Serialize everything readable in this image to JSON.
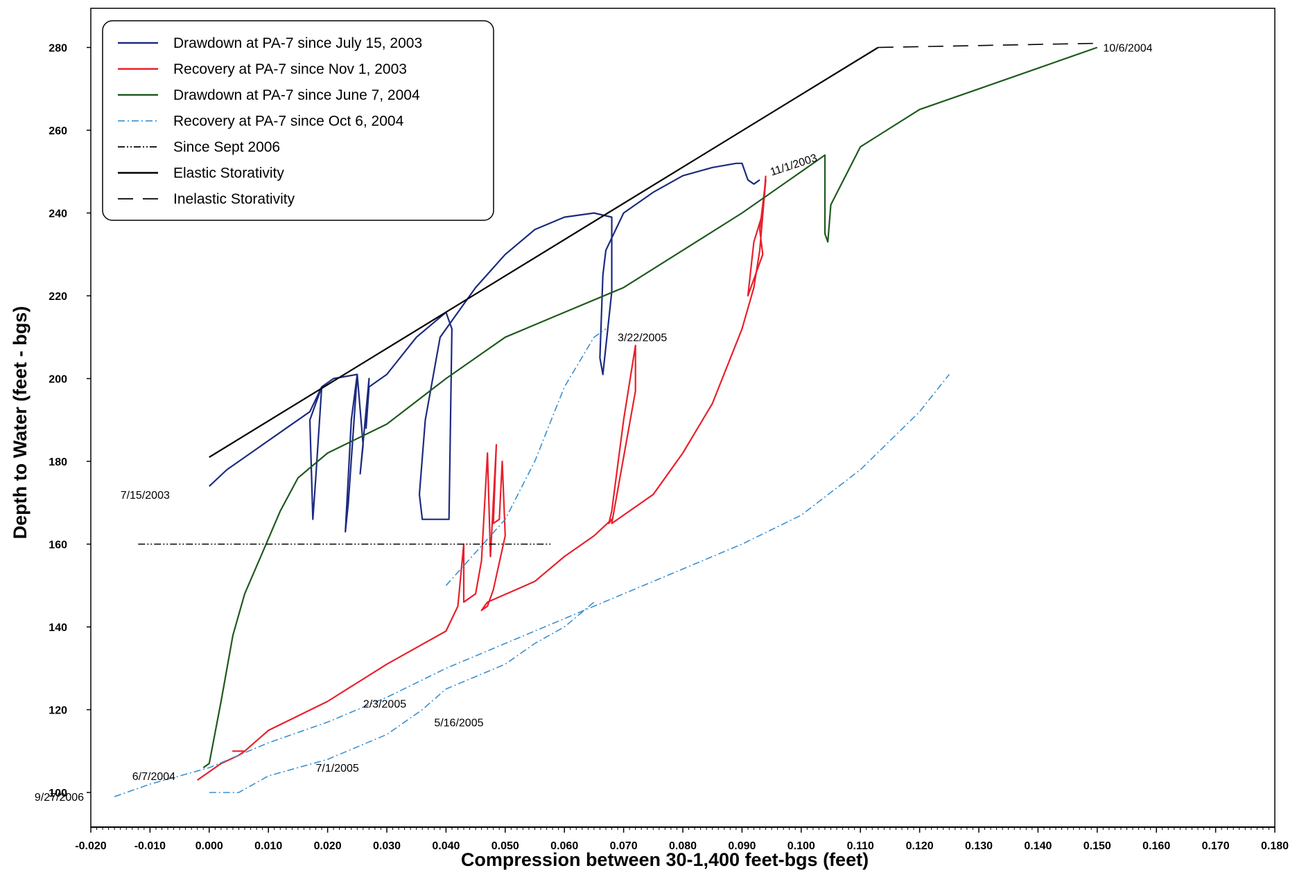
{
  "chart_data": {
    "type": "line",
    "xlabel": "Compression between 30-1,400 feet-bgs (feet)",
    "ylabel": "Depth to Water (feet - bgs)",
    "xlim": [
      -0.02,
      0.18
    ],
    "ylim": [
      99,
      290
    ],
    "x_ticks": [
      -0.02,
      -0.01,
      0.0,
      0.01,
      0.02,
      0.03,
      0.04,
      0.05,
      0.06,
      0.07,
      0.08,
      0.09,
      0.1,
      0.11,
      0.12,
      0.13,
      0.14,
      0.15,
      0.16,
      0.17,
      0.18
    ],
    "x_tick_labels": [
      "-0.020",
      "-0.010",
      "0.000",
      "0.010",
      "0.020",
      "0.030",
      "0.040",
      "0.050",
      "0.060",
      "0.070",
      "0.080",
      "0.090",
      "0.100",
      "0.110",
      "0.120",
      "0.130",
      "0.140",
      "0.150",
      "0.160",
      "0.170",
      "0.180"
    ],
    "y_ticks": [
      100,
      120,
      140,
      160,
      180,
      200,
      220,
      240,
      260,
      280
    ],
    "y_tick_labels": [
      "100",
      "120",
      "140",
      "160",
      "180",
      "200",
      "220",
      "240",
      "260",
      "280"
    ],
    "grid": false,
    "legend_position": "top-left",
    "series": [
      {
        "name": "Drawdown at PA-7 since July 15, 2003",
        "color": "#1c2a80",
        "dash": "solid",
        "x": [
          0.0,
          0.003,
          0.008,
          0.013,
          0.017,
          0.019,
          0.017,
          0.0175,
          0.018,
          0.019,
          0.021,
          0.025,
          0.024,
          0.023,
          0.0235,
          0.025,
          0.026,
          0.0255,
          0.027,
          0.0265,
          0.027,
          0.03,
          0.035,
          0.04,
          0.041,
          0.0405,
          0.036,
          0.0355,
          0.0365,
          0.039,
          0.045,
          0.05,
          0.055,
          0.06,
          0.065,
          0.068,
          0.068,
          0.0665,
          0.066,
          0.0665,
          0.067,
          0.07,
          0.075,
          0.08,
          0.085,
          0.089,
          0.09,
          0.091,
          0.092,
          0.093
        ],
        "y": [
          174,
          178,
          183,
          188,
          192,
          198,
          190,
          166,
          176,
          198,
          200,
          201,
          190,
          163,
          170,
          201,
          184,
          177,
          200,
          188,
          198,
          201,
          210,
          216,
          212,
          166,
          166,
          172,
          190,
          210,
          222,
          230,
          236,
          239,
          240,
          239,
          221,
          201,
          205,
          225,
          231,
          240,
          245,
          249,
          251,
          252,
          252,
          248,
          247,
          248
        ]
      },
      {
        "name": "Recovery at PA-7 since Nov 1, 2003",
        "color": "#e8202a",
        "dash": "solid",
        "x": [
          -0.002,
          0.002,
          0.005,
          0.006,
          0.004,
          0.006,
          0.01,
          0.02,
          0.03,
          0.04,
          0.042,
          0.043,
          0.043,
          0.045,
          0.046,
          0.047,
          0.0475,
          0.0485,
          0.048,
          0.049,
          0.0495,
          0.05,
          0.048,
          0.047,
          0.046,
          0.047,
          0.055,
          0.06,
          0.065,
          0.068,
          0.0675,
          0.068,
          0.07,
          0.072,
          0.072,
          0.068,
          0.075,
          0.08,
          0.085,
          0.09,
          0.092,
          0.093,
          0.094,
          0.093,
          0.0935,
          0.091,
          0.092,
          0.0935,
          0.094
        ],
        "y": [
          103,
          107,
          109,
          110,
          110,
          110,
          115,
          122,
          131,
          139,
          145,
          160,
          146,
          148,
          156,
          182,
          157,
          184,
          165,
          166,
          180,
          162,
          149,
          145,
          144,
          146,
          151,
          157,
          162,
          166,
          165,
          168,
          190,
          208,
          197,
          165,
          172,
          182,
          194,
          212,
          222,
          231,
          248,
          236,
          230,
          220,
          233,
          240,
          249
        ]
      },
      {
        "name": "Drawdown at PA-7 since June 7, 2004",
        "color": "#1e5a1e",
        "dash": "solid",
        "x": [
          -0.001,
          0.0,
          0.002,
          0.004,
          0.006,
          0.009,
          0.012,
          0.015,
          0.02,
          0.03,
          0.04,
          0.05,
          0.06,
          0.07,
          0.08,
          0.09,
          0.1,
          0.104,
          0.104,
          0.1045,
          0.105,
          0.11,
          0.12,
          0.13,
          0.14,
          0.15
        ],
        "y": [
          106,
          107,
          122,
          138,
          148,
          158,
          168,
          176,
          182,
          189,
          200,
          210,
          216,
          222,
          231,
          240,
          250,
          254,
          235,
          233,
          242,
          256,
          265,
          270,
          275,
          280
        ]
      },
      {
        "name": "Recovery at PA-7 since Oct 6, 2004",
        "color": "#3a8fd0",
        "dash": "dashdot",
        "x": [
          -0.016,
          -0.01,
          -0.005,
          0.0,
          0.005,
          0.01,
          0.02,
          0.03,
          0.04,
          0.05,
          0.06,
          0.07,
          0.08,
          0.09,
          0.1,
          0.11,
          0.12,
          0.125
        ],
        "y": [
          99,
          102,
          104,
          106,
          109,
          112,
          117,
          123,
          130,
          136,
          142,
          148,
          154,
          160,
          167,
          178,
          192,
          201
        ]
      },
      {
        "name": "Recovery at PA-7 since Oct 6, 2004",
        "color": "#3a8fd0",
        "dash": "dashdot",
        "x": [
          0.0,
          0.005,
          0.01,
          0.02,
          0.03,
          0.036,
          0.04,
          0.045,
          0.05,
          0.055,
          0.06,
          0.065
        ],
        "y": [
          100,
          100,
          104,
          108,
          114,
          120,
          125,
          128,
          131,
          136,
          140,
          146
        ]
      },
      {
        "name": "Recovery at PA-7 since Oct 6, 2004",
        "color": "#3a8fd0",
        "dash": "dashdot",
        "x": [
          0.04,
          0.045,
          0.05,
          0.055,
          0.06,
          0.065,
          0.067
        ],
        "y": [
          150,
          158,
          166,
          180,
          198,
          210,
          212
        ]
      },
      {
        "name": "Since Sept 2006",
        "color": "#000000",
        "dash": "dashdotdot",
        "x": [
          -0.012,
          0.058
        ],
        "y": [
          160,
          160
        ]
      },
      {
        "name": "Elastic Storativity",
        "color": "#000000",
        "dash": "solid",
        "x": [
          0.0,
          0.113
        ],
        "y": [
          181,
          280
        ]
      },
      {
        "name": "Inelastic Storativity",
        "color": "#000000",
        "dash": "dashed",
        "x": [
          0.113,
          0.15
        ],
        "y": [
          280,
          281
        ]
      }
    ],
    "annotations": [
      {
        "text": "10/6/2004",
        "x": 0.151,
        "y": 279
      },
      {
        "text": "11/1/2003",
        "x": 0.095,
        "y": 249,
        "rotate": -18
      },
      {
        "text": "3/22/2005",
        "x": 0.069,
        "y": 209
      },
      {
        "text": "7/15/2003",
        "x": -0.015,
        "y": 171
      },
      {
        "text": "2/3/2005",
        "x": 0.026,
        "y": 120.5
      },
      {
        "text": "5/16/2005",
        "x": 0.038,
        "y": 116
      },
      {
        "text": "6/7/2004",
        "x": -0.013,
        "y": 103
      },
      {
        "text": "7/1/2005",
        "x": 0.018,
        "y": 105
      },
      {
        "text": "9/27/2006",
        "x": -0.0295,
        "y": 98
      }
    ]
  }
}
